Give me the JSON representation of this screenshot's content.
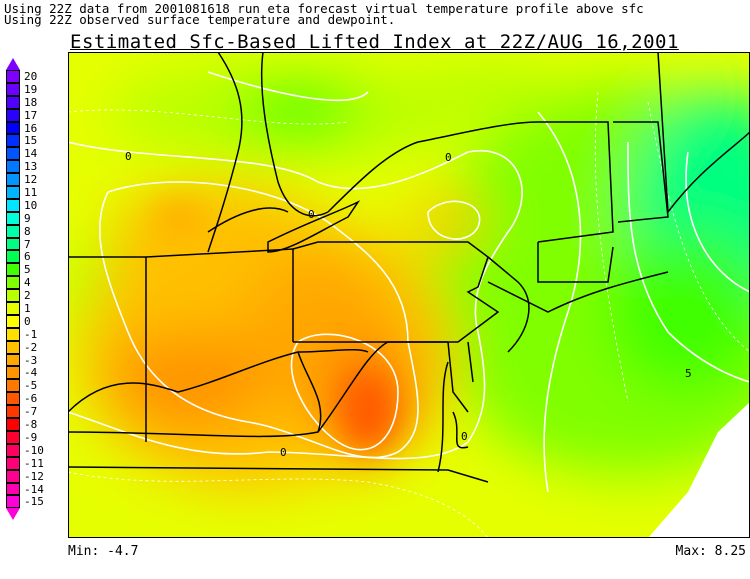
{
  "header": {
    "line1": "Using 22Z data from 2001081618 run eta forecast virtual temperature profile above sfc",
    "line2": "Using 22Z observed surface temperature and dewpoint."
  },
  "title": "Estimated Sfc-Based Lifted Index at 22Z/AUG 16,2001",
  "legend": {
    "entries": [
      {
        "label": "20",
        "color": "#8000ff"
      },
      {
        "label": "19",
        "color": "#6a00ff"
      },
      {
        "label": "18",
        "color": "#5000ff"
      },
      {
        "label": "17",
        "color": "#2a00ff"
      },
      {
        "label": "16",
        "color": "#0000ff"
      },
      {
        "label": "15",
        "color": "#0030ff"
      },
      {
        "label": "14",
        "color": "#0055ff"
      },
      {
        "label": "13",
        "color": "#0078ff"
      },
      {
        "label": "12",
        "color": "#0095ff"
      },
      {
        "label": "11",
        "color": "#00b4ff"
      },
      {
        "label": "10",
        "color": "#00e6ff"
      },
      {
        "label": "9",
        "color": "#00ffd8"
      },
      {
        "label": "8",
        "color": "#00ffa8"
      },
      {
        "label": "7",
        "color": "#00ff80"
      },
      {
        "label": "6",
        "color": "#00ff50"
      },
      {
        "label": "5",
        "color": "#40ff00"
      },
      {
        "label": "4",
        "color": "#80ff00"
      },
      {
        "label": "2",
        "color": "#b8ff00"
      },
      {
        "label": "1",
        "color": "#e6ff00"
      },
      {
        "label": "0",
        "color": "#ffff00"
      },
      {
        "label": "-1",
        "color": "#ffe000"
      },
      {
        "label": "-2",
        "color": "#ffc000"
      },
      {
        "label": "-3",
        "color": "#ffa800"
      },
      {
        "label": "-4",
        "color": "#ff9400"
      },
      {
        "label": "-5",
        "color": "#ff7800"
      },
      {
        "label": "-6",
        "color": "#ff5800"
      },
      {
        "label": "-7",
        "color": "#ff3800"
      },
      {
        "label": "-8",
        "color": "#ff0000"
      },
      {
        "label": "-9",
        "color": "#ff0030"
      },
      {
        "label": "-10",
        "color": "#ff0060"
      },
      {
        "label": "-11",
        "color": "#ff0078"
      },
      {
        "label": "-12",
        "color": "#ff0090"
      },
      {
        "label": "-14",
        "color": "#ff00b0"
      },
      {
        "label": "-15",
        "color": "#ff00d8"
      }
    ]
  },
  "map": {
    "contour_labels": [
      "0",
      "0",
      "0",
      "0",
      "0",
      "5"
    ]
  },
  "footer": {
    "min": "Min: -4.7",
    "max": "Max: 8.25"
  }
}
